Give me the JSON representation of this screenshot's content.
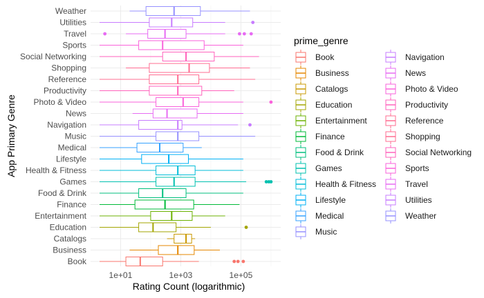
{
  "chart_data": {
    "type": "boxplot",
    "orientation": "horizontal",
    "xlabel": "Rating Count (logarithmic)",
    "ylabel": "App Primary Genre",
    "x_scale": "log10",
    "x_range": [
      2,
      2000000
    ],
    "x_ticks": [
      10,
      1000,
      100000
    ],
    "x_tick_labels": [
      "1e+01",
      "1e+03",
      "1e+05"
    ],
    "grid": true,
    "legend": {
      "title": "prime_genre",
      "placement": "right",
      "columns": 2
    },
    "series": [
      {
        "name": "Book",
        "color": "#F8766D",
        "whisker_low": 2,
        "q1": 15,
        "median": 45,
        "q3": 250,
        "whisker_high": 4000,
        "outliers": [
          60000,
          80000,
          120000
        ]
      },
      {
        "name": "Business",
        "color": "#E58700",
        "whisker_low": 20,
        "q1": 180,
        "median": 800,
        "q3": 2800,
        "whisker_high": 20000,
        "outliers": []
      },
      {
        "name": "Catalogs",
        "color": "#C99800",
        "whisker_low": 350,
        "q1": 600,
        "median": 1500,
        "q3": 2300,
        "whisker_high": 3000,
        "outliers": []
      },
      {
        "name": "Education",
        "color": "#A3A500",
        "whisker_low": 2,
        "q1": 40,
        "median": 120,
        "q3": 700,
        "whisker_high": 10000,
        "outliers": [
          150000
        ]
      },
      {
        "name": "Entertainment",
        "color": "#6BB100",
        "whisker_low": 2,
        "q1": 100,
        "median": 500,
        "q3": 2400,
        "whisker_high": 30000,
        "outliers": []
      },
      {
        "name": "Finance",
        "color": "#00BA38",
        "whisker_low": 2,
        "q1": 30,
        "median": 300,
        "q3": 2700,
        "whisker_high": 90000,
        "outliers": []
      },
      {
        "name": "Food & Drink",
        "color": "#00BF7D",
        "whisker_low": 2,
        "q1": 40,
        "median": 250,
        "q3": 1500,
        "whisker_high": 120000,
        "outliers": []
      },
      {
        "name": "Games",
        "color": "#00C0AF",
        "whisker_low": 2,
        "q1": 150,
        "median": 600,
        "q3": 3000,
        "whisker_high": 150000,
        "outliers": [
          700000,
          850000,
          1000000
        ]
      },
      {
        "name": "Health & Fitness",
        "color": "#00BCD8",
        "whisker_low": 2,
        "q1": 150,
        "median": 800,
        "q3": 3000,
        "whisker_high": 120000,
        "outliers": []
      },
      {
        "name": "Lifestyle",
        "color": "#00B0F6",
        "whisker_low": 2,
        "q1": 50,
        "median": 400,
        "q3": 1800,
        "whisker_high": 120000,
        "outliers": []
      },
      {
        "name": "Medical",
        "color": "#35A2FF",
        "whisker_low": 2,
        "q1": 35,
        "median": 200,
        "q3": 1200,
        "whisker_high": 5000,
        "outliers": []
      },
      {
        "name": "Music",
        "color": "#9590FF",
        "whisker_low": 2,
        "q1": 150,
        "median": 800,
        "q3": 4000,
        "whisker_high": 300000,
        "outliers": []
      },
      {
        "name": "Navigation",
        "color": "#C77CFF",
        "whisker_low": 2,
        "q1": 40,
        "median": 800,
        "q3": 1100,
        "whisker_high": 80000,
        "outliers": [
          200000
        ]
      },
      {
        "name": "News",
        "color": "#E76BF3",
        "whisker_low": 25,
        "q1": 120,
        "median": 350,
        "q3": 3500,
        "whisker_high": 120000,
        "outliers": []
      },
      {
        "name": "Photo & Video",
        "color": "#FA62DB",
        "whisker_low": 2,
        "q1": 150,
        "median": 1200,
        "q3": 4000,
        "whisker_high": 120000,
        "outliers": [
          1000000
        ]
      },
      {
        "name": "Productivity",
        "color": "#FF62BC",
        "whisker_low": 2,
        "q1": 90,
        "median": 800,
        "q3": 5000,
        "whisker_high": 60000,
        "outliers": []
      },
      {
        "name": "Reference",
        "color": "#FF6C91",
        "whisker_low": 2,
        "q1": 90,
        "median": 800,
        "q3": 4000,
        "whisker_high": 300000,
        "outliers": []
      },
      {
        "name": "Shopping",
        "color": "#FF6C91",
        "whisker_low": 15,
        "q1": 90,
        "median": 1900,
        "q3": 9000,
        "whisker_high": 200000,
        "outliers": []
      },
      {
        "name": "Social Networking",
        "color": "#FF62BC",
        "whisker_low": 2,
        "q1": 250,
        "median": 1500,
        "q3": 13000,
        "whisker_high": 400000,
        "outliers": []
      },
      {
        "name": "Sports",
        "color": "#FA62DB",
        "whisker_low": 2,
        "q1": 40,
        "median": 250,
        "q3": 6000,
        "whisker_high": 120000,
        "outliers": []
      },
      {
        "name": "Travel",
        "color": "#E76BF3",
        "whisker_low": 15,
        "q1": 80,
        "median": 300,
        "q3": 1500,
        "whisker_high": 30000,
        "outliers": [
          3,
          90000,
          130000,
          220000
        ]
      },
      {
        "name": "Utilities",
        "color": "#C77CFF",
        "whisker_low": 2,
        "q1": 90,
        "median": 500,
        "q3": 2500,
        "whisker_high": 30000,
        "outliers": [
          250000
        ]
      },
      {
        "name": "Weather",
        "color": "#9590FF",
        "whisker_low": 20,
        "q1": 70,
        "median": 600,
        "q3": 4500,
        "whisker_high": 200000,
        "outliers": []
      }
    ]
  }
}
